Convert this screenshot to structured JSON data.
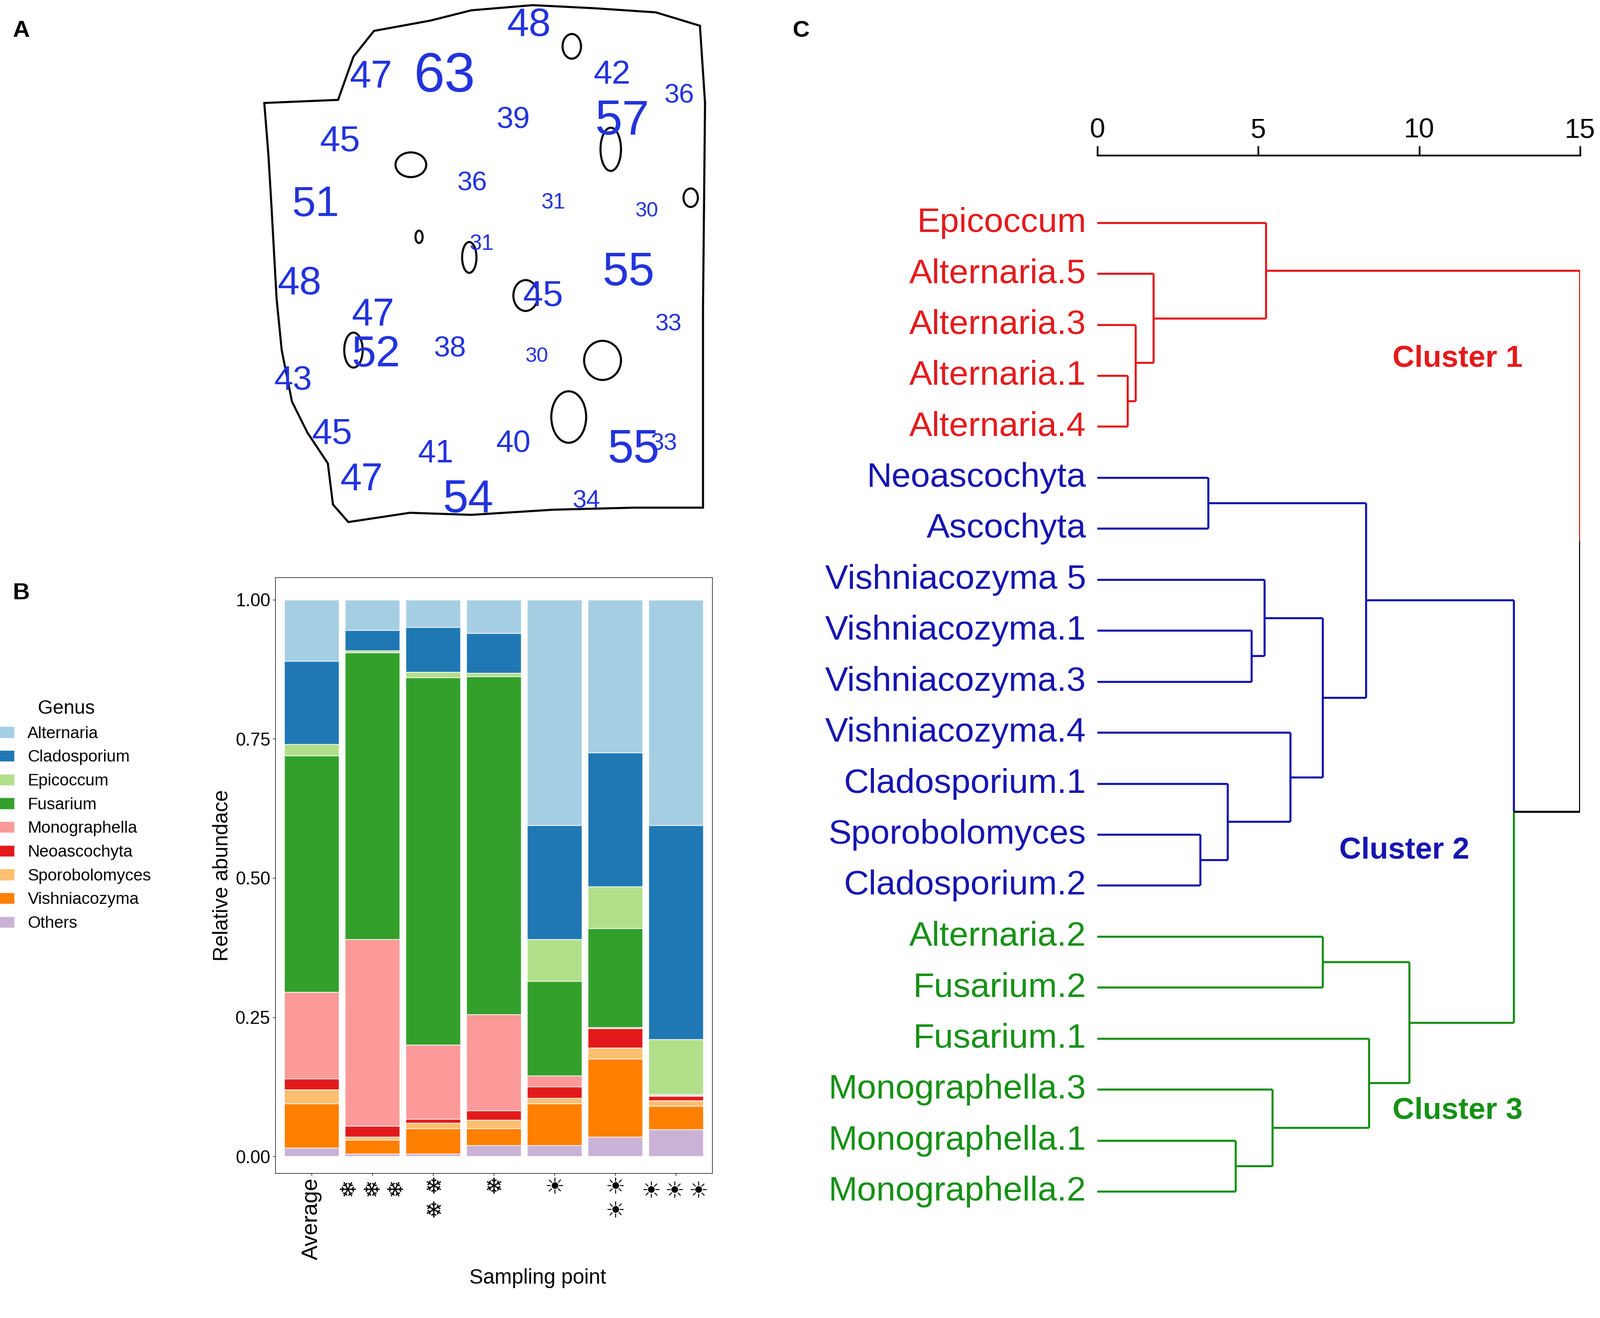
{
  "panel_labels": [
    "A",
    "B",
    "C"
  ],
  "map": {
    "color": "#2233dd",
    "values": [
      48,
      47,
      63,
      42,
      36,
      39,
      57,
      45,
      36,
      51,
      31,
      30,
      31,
      55,
      48,
      45,
      47,
      33,
      52,
      38,
      30,
      43,
      45,
      41,
      40,
      55,
      33,
      47,
      54,
      34
    ]
  },
  "chart_data": {
    "type": "bar",
    "stacked": true,
    "x_label": "Sampling point",
    "y_label": "Relative abundace",
    "legend": "left",
    "legend_title": "Genus",
    "categories": [
      "Average",
      "❄\n❄\n❄",
      "❄\n❄",
      "❄",
      "☀",
      "☀\n☀",
      "☀\n☀\n☀"
    ],
    "ylim": [
      -0.03,
      1.04
    ],
    "yticks": [
      {
        "value": 0,
        "label": "0.00"
      },
      {
        "value": 0.25,
        "label": "0.25"
      },
      {
        "value": 0.5,
        "label": "0.50"
      },
      {
        "value": 0.75,
        "label": "0.75"
      },
      {
        "value": 1,
        "label": "1.00"
      }
    ],
    "series": [
      {
        "name": "Alternaria",
        "color": "#a6cee3",
        "values": [
          0.11,
          0.055,
          0.05,
          0.06,
          0.405,
          0.275,
          0.405
        ]
      },
      {
        "name": "Cladosporium",
        "color": "#1f78b4",
        "values": [
          0.15,
          0.037,
          0.08,
          0.072,
          0.205,
          0.24,
          0.385
        ]
      },
      {
        "name": "Epicoccum",
        "color": "#b2df8a",
        "values": [
          0.02,
          0.003,
          0.01,
          0.006,
          0.075,
          0.075,
          0.098
        ]
      },
      {
        "name": "Fusarium",
        "color": "#33a02c",
        "values": [
          0.425,
          0.515,
          0.66,
          0.607,
          0.17,
          0.178,
          0.002
        ]
      },
      {
        "name": "Monographella",
        "color": "#fb9a99",
        "values": [
          0.155,
          0.335,
          0.133,
          0.173,
          0.02,
          0.002,
          0.002
        ]
      },
      {
        "name": "Neoascochyta",
        "color": "#e31a1c",
        "values": [
          0.02,
          0.02,
          0.007,
          0.017,
          0.02,
          0.035,
          0.008
        ]
      },
      {
        "name": "Sporobolomyces",
        "color": "#fdbf6f",
        "values": [
          0.025,
          0.005,
          0.01,
          0.015,
          0.01,
          0.02,
          0.01
        ]
      },
      {
        "name": "Vishniacozyma",
        "color": "#ff7f00",
        "values": [
          0.08,
          0.025,
          0.045,
          0.03,
          0.075,
          0.14,
          0.042
        ]
      },
      {
        "name": "Others",
        "color": "#cab2d6",
        "values": [
          0.015,
          0.005,
          0.005,
          0.02,
          0.02,
          0.035,
          0.048
        ]
      }
    ]
  },
  "dendrogram": {
    "xlim": [
      0,
      15
    ],
    "xticks": [
      0,
      5,
      10,
      15
    ],
    "clusters": [
      {
        "name": "Cluster 1",
        "color": "#e41a1c"
      },
      {
        "name": "Cluster 2",
        "color": "#1515b0"
      },
      {
        "name": "Cluster 3",
        "color": "#169016"
      }
    ],
    "leaves": [
      {
        "name": "Epicoccum",
        "cluster": 0
      },
      {
        "name": "Alternaria.5",
        "cluster": 0
      },
      {
        "name": "Alternaria.3",
        "cluster": 0
      },
      {
        "name": "Alternaria.1",
        "cluster": 0
      },
      {
        "name": "Alternaria.4",
        "cluster": 0
      },
      {
        "name": "Neoascochyta",
        "cluster": 1
      },
      {
        "name": "Ascochyta",
        "cluster": 1
      },
      {
        "name": "Vishniacozyma 5",
        "cluster": 1
      },
      {
        "name": "Vishniacozyma.1",
        "cluster": 1
      },
      {
        "name": "Vishniacozyma.3",
        "cluster": 1
      },
      {
        "name": "Vishniacozyma.4",
        "cluster": 1
      },
      {
        "name": "Cladosporium.1",
        "cluster": 1
      },
      {
        "name": "Sporobolomyces",
        "cluster": 1
      },
      {
        "name": "Cladosporium.2",
        "cluster": 1
      },
      {
        "name": "Alternaria.2",
        "cluster": 2
      },
      {
        "name": "Fusarium.2",
        "cluster": 2
      },
      {
        "name": "Fusarium.1",
        "cluster": 2
      },
      {
        "name": "Monographella.3",
        "cluster": 2
      },
      {
        "name": "Monographella.1",
        "cluster": 2
      },
      {
        "name": "Monographella.2",
        "cluster": 2
      }
    ],
    "merges": [
      {
        "a": 3,
        "b": 4,
        "height": 0.95
      },
      {
        "a": 2,
        "b": 20,
        "height": 1.2
      },
      {
        "a": 1,
        "b": 21,
        "height": 1.75
      },
      {
        "a": 0,
        "b": 22,
        "height": 5.25
      },
      {
        "a": 5,
        "b": 6,
        "height": 3.45
      },
      {
        "a": 8,
        "b": 9,
        "height": 4.8
      },
      {
        "a": 7,
        "b": 25,
        "height": 5.2
      },
      {
        "a": 12,
        "b": 13,
        "height": 3.2
      },
      {
        "a": 11,
        "b": 27,
        "height": 4.05
      },
      {
        "a": 10,
        "b": 28,
        "height": 6.0
      },
      {
        "a": 26,
        "b": 29,
        "height": 7.0
      },
      {
        "a": 24,
        "b": 30,
        "height": 8.35
      },
      {
        "a": 14,
        "b": 15,
        "height": 7.0
      },
      {
        "a": 18,
        "b": 19,
        "height": 4.3
      },
      {
        "a": 17,
        "b": 33,
        "height": 5.45
      },
      {
        "a": 16,
        "b": 34,
        "height": 8.45
      },
      {
        "a": 32,
        "b": 35,
        "height": 9.7
      },
      {
        "a": 31,
        "b": 36,
        "height": 12.95
      },
      {
        "a": 23,
        "b": 37,
        "height": 15.0
      }
    ]
  }
}
